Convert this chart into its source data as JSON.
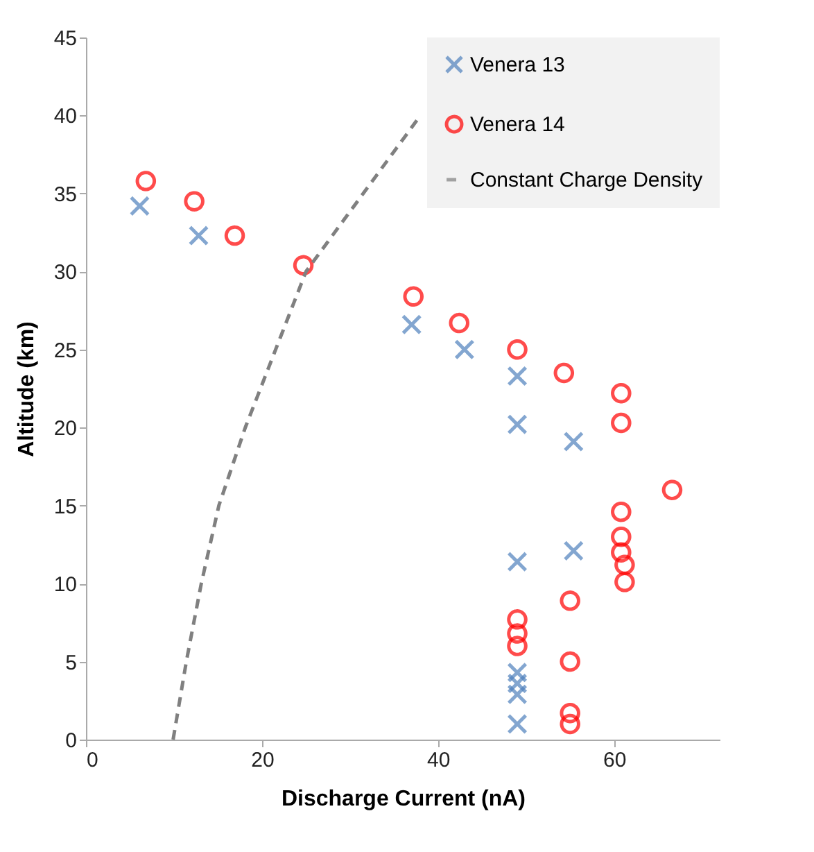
{
  "chart_data": {
    "type": "scatter",
    "xlabel": "Discharge Current (nA)",
    "ylabel": "Altitude (km)",
    "xlim": [
      0,
      72
    ],
    "ylim": [
      0,
      45
    ],
    "xticks": [
      0,
      20,
      40,
      60
    ],
    "yticks": [
      0,
      5,
      10,
      15,
      20,
      25,
      30,
      35,
      40,
      45
    ],
    "grid": false,
    "legend": "top right",
    "series": [
      {
        "name": "Venera 13",
        "color": "#4f81bd",
        "marker": "cross",
        "x": [
          6.1,
          12.8,
          37,
          43,
          49,
          49,
          55.4,
          49,
          55.4,
          49,
          49,
          49,
          49
        ],
        "values": [
          34.2,
          32.3,
          26.6,
          25,
          23.3,
          20.2,
          19.1,
          11.4,
          12.1,
          4.3,
          3.6,
          2.9,
          1.0
        ]
      },
      {
        "name": "Venera 14",
        "color": "#ff0000",
        "marker": "circle",
        "x": [
          6.8,
          12.3,
          16.9,
          24.7,
          37.2,
          42.4,
          49,
          54.3,
          60.8,
          60.8,
          66.6,
          60.8,
          60.8,
          60.8,
          61.2,
          61.2,
          55,
          55,
          55,
          55,
          49,
          49,
          49
        ],
        "values": [
          35.8,
          34.5,
          32.3,
          30.4,
          28.4,
          26.7,
          25,
          23.5,
          22.2,
          20.3,
          16,
          14.6,
          13,
          12,
          11.2,
          10.1,
          8.9,
          5,
          1.7,
          1.0,
          7.7,
          6.8,
          6.0
        ]
      },
      {
        "name": "Constant Charge Density",
        "type": "line",
        "color": "#808080",
        "line_style": "dashed",
        "x": [
          9.9,
          11.4,
          13.1,
          15.1,
          18.1,
          25,
          38
        ],
        "values": [
          0,
          5,
          10,
          15,
          20,
          30,
          40
        ]
      }
    ]
  }
}
